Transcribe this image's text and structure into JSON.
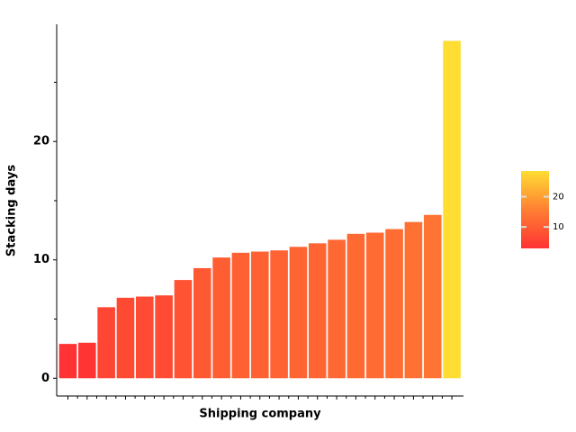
{
  "chart_data": {
    "type": "bar",
    "x_label": "Shipping company",
    "y_label": "Stacking days",
    "categories": [
      null,
      null,
      null,
      null,
      null,
      null,
      null,
      null,
      null,
      null,
      null,
      null,
      null,
      null,
      null,
      null,
      null,
      null,
      null,
      null,
      null
    ],
    "values": [
      2.9,
      3.0,
      6.0,
      6.8,
      6.9,
      7.0,
      8.3,
      9.3,
      10.2,
      10.6,
      10.7,
      10.8,
      11.1,
      11.4,
      11.7,
      12.2,
      12.3,
      12.6,
      13.2,
      13.8,
      28.5
    ],
    "colorscale": [
      "#ff3333",
      "#ff7f33",
      "#ffdd33"
    ],
    "colorbar_ticks": [
      10,
      20
    ],
    "ylim": [
      -1.5,
      29.9
    ],
    "yticks": [
      0,
      10,
      20
    ],
    "y_minor_ticks": [
      5,
      15,
      25
    ],
    "grid": false
  }
}
